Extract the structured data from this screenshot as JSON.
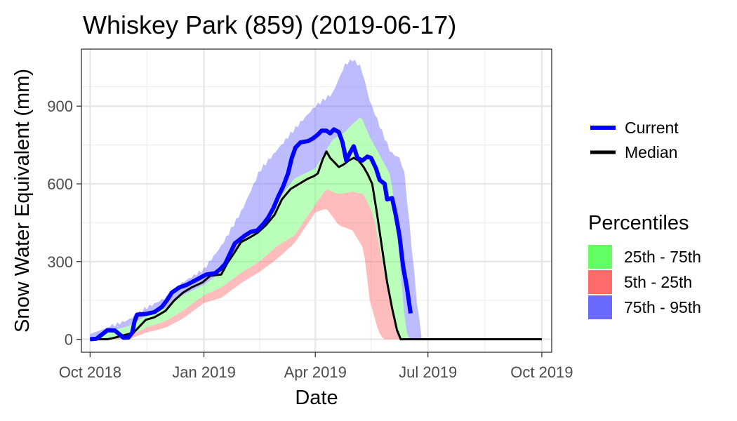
{
  "chart_data": {
    "type": "area",
    "title": "Whiskey Park (859) (2019-06-17)",
    "xlabel": "Date",
    "ylabel": "Snow Water Equivalent (mm)",
    "xlim": [
      "2018-09-24",
      "2019-10-09"
    ],
    "ylim": [
      -50,
      1120
    ],
    "x_ticks": [
      {
        "date": "2018-10-01",
        "label": "Oct 2018"
      },
      {
        "date": "2019-01-01",
        "label": "Jan 2019"
      },
      {
        "date": "2019-04-01",
        "label": "Apr 2019"
      },
      {
        "date": "2019-07-01",
        "label": "Jul 2019"
      },
      {
        "date": "2019-10-01",
        "label": "Oct 2019"
      }
    ],
    "y_ticks": [
      0,
      300,
      600,
      900
    ],
    "grid": true,
    "legend_placement": "right",
    "series": [
      {
        "name": "Current",
        "color": "#0000ff",
        "points": [
          [
            "2018-10-01",
            0
          ],
          [
            "2018-10-06",
            2
          ],
          [
            "2018-10-11",
            20
          ],
          [
            "2018-10-15",
            35
          ],
          [
            "2018-10-21",
            34
          ],
          [
            "2018-10-25",
            18
          ],
          [
            "2018-10-28",
            6
          ],
          [
            "2018-11-01",
            7
          ],
          [
            "2018-11-04",
            25
          ],
          [
            "2018-11-06",
            70
          ],
          [
            "2018-11-08",
            95
          ],
          [
            "2018-11-15",
            98
          ],
          [
            "2018-11-22",
            105
          ],
          [
            "2018-11-28",
            125
          ],
          [
            "2018-12-02",
            150
          ],
          [
            "2018-12-06",
            180
          ],
          [
            "2018-12-12",
            200
          ],
          [
            "2018-12-18",
            210
          ],
          [
            "2018-12-24",
            225
          ],
          [
            "2018-12-30",
            240
          ],
          [
            "2019-01-03",
            250
          ],
          [
            "2019-01-10",
            255
          ],
          [
            "2019-01-14",
            270
          ],
          [
            "2019-01-18",
            290
          ],
          [
            "2019-01-22",
            330
          ],
          [
            "2019-01-26",
            370
          ],
          [
            "2019-01-30",
            385
          ],
          [
            "2019-02-03",
            400
          ],
          [
            "2019-02-08",
            415
          ],
          [
            "2019-02-13",
            420
          ],
          [
            "2019-02-18",
            445
          ],
          [
            "2019-02-22",
            470
          ],
          [
            "2019-02-26",
            505
          ],
          [
            "2019-03-02",
            550
          ],
          [
            "2019-03-06",
            590
          ],
          [
            "2019-03-10",
            640
          ],
          [
            "2019-03-13",
            700
          ],
          [
            "2019-03-16",
            740
          ],
          [
            "2019-03-20",
            760
          ],
          [
            "2019-03-26",
            765
          ],
          [
            "2019-03-30",
            775
          ],
          [
            "2019-04-03",
            790
          ],
          [
            "2019-04-06",
            805
          ],
          [
            "2019-04-10",
            805
          ],
          [
            "2019-04-13",
            795
          ],
          [
            "2019-04-16",
            810
          ],
          [
            "2019-04-20",
            800
          ],
          [
            "2019-04-23",
            760
          ],
          [
            "2019-04-26",
            690
          ],
          [
            "2019-04-29",
            720
          ],
          [
            "2019-05-02",
            745
          ],
          [
            "2019-05-05",
            700
          ],
          [
            "2019-05-09",
            690
          ],
          [
            "2019-05-13",
            705
          ],
          [
            "2019-05-16",
            700
          ],
          [
            "2019-05-20",
            660
          ],
          [
            "2019-05-23",
            615
          ],
          [
            "2019-05-27",
            600
          ],
          [
            "2019-05-29",
            540
          ],
          [
            "2019-06-02",
            545
          ],
          [
            "2019-06-05",
            480
          ],
          [
            "2019-06-08",
            400
          ],
          [
            "2019-06-11",
            280
          ],
          [
            "2019-06-14",
            200
          ],
          [
            "2019-06-17",
            100
          ]
        ]
      },
      {
        "name": "Median",
        "color": "#000000",
        "points": [
          [
            "2018-10-01",
            0
          ],
          [
            "2018-10-15",
            0
          ],
          [
            "2018-10-20",
            5
          ],
          [
            "2018-10-28",
            15
          ],
          [
            "2018-11-05",
            25
          ],
          [
            "2018-11-10",
            50
          ],
          [
            "2018-11-15",
            75
          ],
          [
            "2018-11-22",
            85
          ],
          [
            "2018-12-01",
            110
          ],
          [
            "2018-12-08",
            150
          ],
          [
            "2018-12-15",
            180
          ],
          [
            "2018-12-22",
            200
          ],
          [
            "2018-12-31",
            220
          ],
          [
            "2019-01-06",
            245
          ],
          [
            "2019-01-15",
            250
          ],
          [
            "2019-01-20",
            295
          ],
          [
            "2019-01-25",
            330
          ],
          [
            "2019-01-31",
            375
          ],
          [
            "2019-02-06",
            390
          ],
          [
            "2019-02-13",
            410
          ],
          [
            "2019-02-20",
            440
          ],
          [
            "2019-02-27",
            480
          ],
          [
            "2019-03-05",
            540
          ],
          [
            "2019-03-12",
            580
          ],
          [
            "2019-03-19",
            600
          ],
          [
            "2019-03-26",
            620
          ],
          [
            "2019-03-31",
            630
          ],
          [
            "2019-04-03",
            640
          ],
          [
            "2019-04-07",
            695
          ],
          [
            "2019-04-10",
            725
          ],
          [
            "2019-04-13",
            700
          ],
          [
            "2019-04-16",
            685
          ],
          [
            "2019-04-20",
            665
          ],
          [
            "2019-04-24",
            675
          ],
          [
            "2019-04-28",
            690
          ],
          [
            "2019-05-02",
            700
          ],
          [
            "2019-05-06",
            690
          ],
          [
            "2019-05-10",
            665
          ],
          [
            "2019-05-13",
            640
          ],
          [
            "2019-05-17",
            600
          ],
          [
            "2019-05-21",
            480
          ],
          [
            "2019-05-25",
            350
          ],
          [
            "2019-05-29",
            220
          ],
          [
            "2019-06-02",
            120
          ],
          [
            "2019-06-06",
            35
          ],
          [
            "2019-06-09",
            0
          ],
          [
            "2019-10-01",
            0
          ]
        ]
      }
    ],
    "bands": [
      {
        "name": "75th - 95th",
        "color": "#6a6aff",
        "upper_series": "p95",
        "lower_series": "p75"
      },
      {
        "name": "25th - 75th",
        "color": "#63ff63",
        "upper_series": "p75",
        "lower_series": "p25"
      },
      {
        "name": "5th - 25th",
        "color": "#ff6a6a",
        "upper_series": "p25",
        "lower_series": "p5"
      }
    ],
    "percentiles": {
      "p95": [
        [
          "2018-10-01",
          20
        ],
        [
          "2018-10-15",
          45
        ],
        [
          "2018-11-01",
          75
        ],
        [
          "2018-11-15",
          120
        ],
        [
          "2018-12-01",
          160
        ],
        [
          "2018-12-15",
          220
        ],
        [
          "2019-01-01",
          270
        ],
        [
          "2019-01-15",
          360
        ],
        [
          "2019-02-01",
          500
        ],
        [
          "2019-02-15",
          650
        ],
        [
          "2019-03-01",
          730
        ],
        [
          "2019-03-15",
          810
        ],
        [
          "2019-04-01",
          900
        ],
        [
          "2019-04-15",
          950
        ],
        [
          "2019-04-25",
          1060
        ],
        [
          "2019-05-01",
          1080
        ],
        [
          "2019-05-08",
          1050
        ],
        [
          "2019-05-15",
          920
        ],
        [
          "2019-05-25",
          800
        ],
        [
          "2019-06-01",
          720
        ],
        [
          "2019-06-08",
          700
        ],
        [
          "2019-06-12",
          640
        ],
        [
          "2019-06-18",
          350
        ],
        [
          "2019-06-22",
          150
        ],
        [
          "2019-06-26",
          0
        ],
        [
          "2019-10-01",
          0
        ]
      ],
      "p75": [
        [
          "2018-10-01",
          5
        ],
        [
          "2018-10-15",
          30
        ],
        [
          "2018-11-01",
          50
        ],
        [
          "2018-11-15",
          90
        ],
        [
          "2018-12-01",
          120
        ],
        [
          "2018-12-15",
          170
        ],
        [
          "2019-01-01",
          210
        ],
        [
          "2019-01-15",
          260
        ],
        [
          "2019-02-01",
          380
        ],
        [
          "2019-02-15",
          430
        ],
        [
          "2019-03-01",
          530
        ],
        [
          "2019-03-15",
          620
        ],
        [
          "2019-04-01",
          660
        ],
        [
          "2019-04-15",
          770
        ],
        [
          "2019-04-25",
          800
        ],
        [
          "2019-05-01",
          830
        ],
        [
          "2019-05-08",
          860
        ],
        [
          "2019-05-15",
          780
        ],
        [
          "2019-05-22",
          720
        ],
        [
          "2019-06-01",
          630
        ],
        [
          "2019-06-06",
          420
        ],
        [
          "2019-06-10",
          200
        ],
        [
          "2019-06-13",
          40
        ],
        [
          "2019-06-16",
          0
        ],
        [
          "2019-10-01",
          0
        ]
      ],
      "p25": [
        [
          "2018-10-01",
          0
        ],
        [
          "2018-10-20",
          0
        ],
        [
          "2018-11-01",
          10
        ],
        [
          "2018-11-15",
          45
        ],
        [
          "2018-12-01",
          70
        ],
        [
          "2018-12-15",
          110
        ],
        [
          "2019-01-01",
          170
        ],
        [
          "2019-01-15",
          200
        ],
        [
          "2019-02-01",
          260
        ],
        [
          "2019-02-15",
          300
        ],
        [
          "2019-03-01",
          360
        ],
        [
          "2019-03-15",
          400
        ],
        [
          "2019-04-01",
          520
        ],
        [
          "2019-04-10",
          580
        ],
        [
          "2019-04-20",
          560
        ],
        [
          "2019-05-01",
          570
        ],
        [
          "2019-05-10",
          560
        ],
        [
          "2019-05-18",
          480
        ],
        [
          "2019-05-25",
          300
        ],
        [
          "2019-06-01",
          120
        ],
        [
          "2019-06-06",
          20
        ],
        [
          "2019-06-09",
          0
        ],
        [
          "2019-10-01",
          0
        ]
      ],
      "p5": [
        [
          "2018-10-01",
          0
        ],
        [
          "2018-11-01",
          0
        ],
        [
          "2018-11-15",
          25
        ],
        [
          "2018-12-01",
          45
        ],
        [
          "2018-12-15",
          80
        ],
        [
          "2019-01-01",
          140
        ],
        [
          "2019-01-15",
          160
        ],
        [
          "2019-02-01",
          220
        ],
        [
          "2019-02-15",
          260
        ],
        [
          "2019-03-01",
          310
        ],
        [
          "2019-03-15",
          370
        ],
        [
          "2019-04-01",
          490
        ],
        [
          "2019-04-10",
          505
        ],
        [
          "2019-04-20",
          440
        ],
        [
          "2019-05-01",
          420
        ],
        [
          "2019-05-10",
          350
        ],
        [
          "2019-05-15",
          150
        ],
        [
          "2019-05-22",
          30
        ],
        [
          "2019-05-26",
          0
        ],
        [
          "2019-10-01",
          0
        ]
      ]
    },
    "legend": {
      "lines": [
        {
          "label": "Current",
          "color": "#0000ff"
        },
        {
          "label": "Median",
          "color": "#000000"
        }
      ],
      "percentiles_title": "Percentiles",
      "fills": [
        {
          "label": "25th - 75th",
          "color": "#63ff63"
        },
        {
          "label": "5th - 25th",
          "color": "#ff6a6a"
        },
        {
          "label": "75th - 95th",
          "color": "#6a6aff"
        }
      ]
    }
  }
}
